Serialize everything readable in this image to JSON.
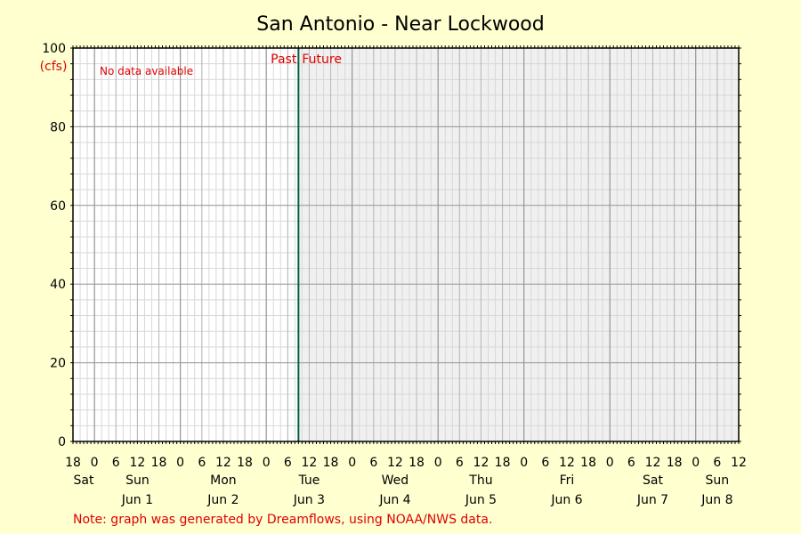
{
  "chart_data": {
    "type": "line",
    "title": "San Antonio - Near Lockwood",
    "ylabel": "(cfs)",
    "ylim": [
      0,
      100
    ],
    "yticks": [
      0,
      20,
      40,
      60,
      80,
      100
    ],
    "xlim": [
      "2025-05-31T18:00",
      "2025-06-08T12:00"
    ],
    "now": "2025-06-03T09:00",
    "hour_ticks": [
      "18",
      "0",
      "6",
      "12",
      "18",
      "0",
      "6",
      "12",
      "18",
      "0",
      "6",
      "12",
      "18",
      "0",
      "6",
      "12",
      "18",
      "0",
      "6",
      "12",
      "18",
      "0",
      "6",
      "12",
      "18",
      "0",
      "6",
      "12",
      "18",
      "0",
      "6",
      "12"
    ],
    "weekday_labels": [
      "Sat",
      "Sun",
      "Mon",
      "Tue",
      "Wed",
      "Thu",
      "Fri",
      "Sat",
      "Sun"
    ],
    "date_labels": [
      "Jun 1",
      "Jun 2",
      "Jun 3",
      "Jun 4",
      "Jun 5",
      "Jun 6",
      "Jun 7",
      "Jun 8"
    ],
    "series": [],
    "grid": true,
    "annotations": {
      "no_data": "No data available",
      "past": "Past",
      "future": "Future"
    },
    "note": "Note: graph was generated by Dreamflows, using NOAA/NWS data."
  },
  "colors": {
    "background": "#ffffd0",
    "past_region": "#ffffff",
    "future_region": "#f0f0f0",
    "now_line": "#006040",
    "annotation": "#e00000"
  }
}
